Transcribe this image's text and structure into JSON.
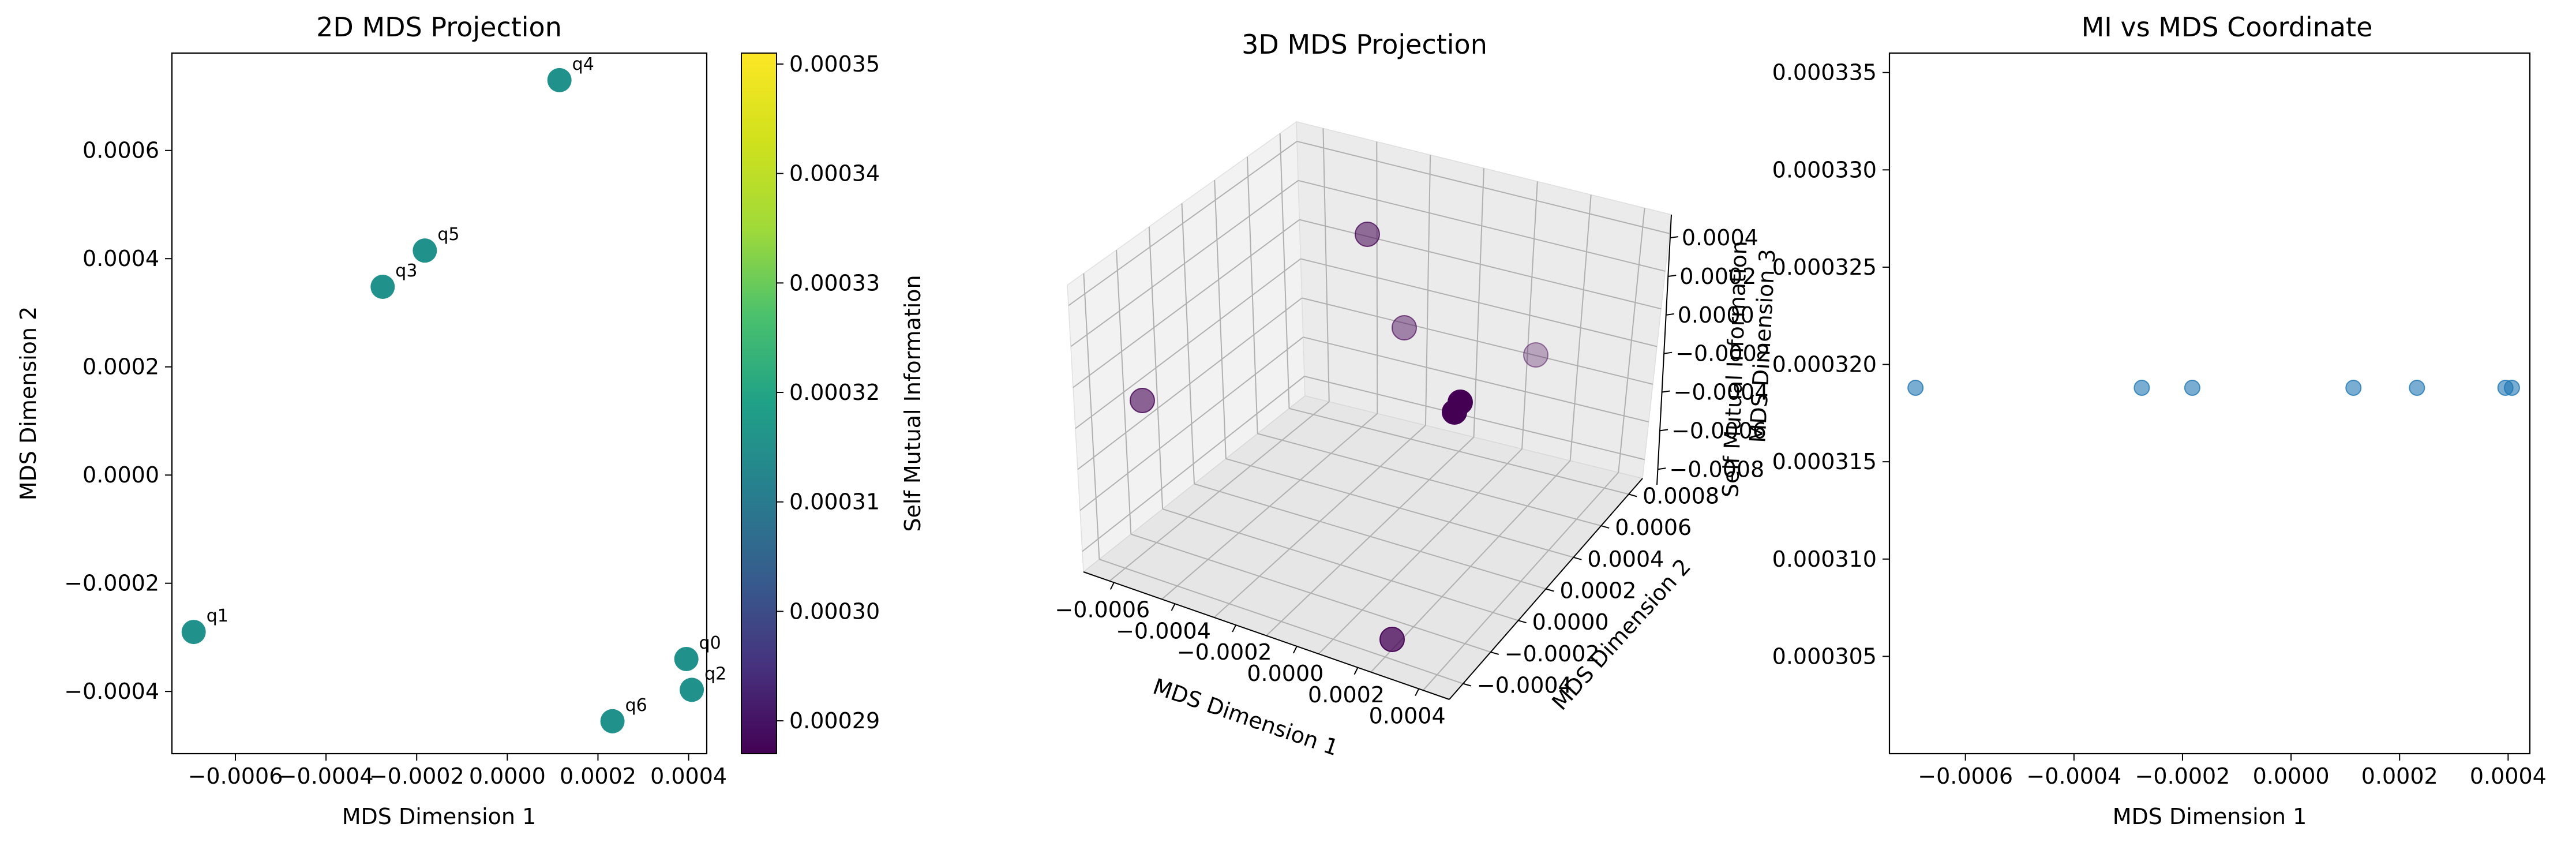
{
  "figure": {
    "background": "#ffffff",
    "axis_color": "#000000",
    "tick_label_color": "#000000"
  },
  "colorbar": {
    "label": "Self Mutual Information",
    "colormap": "viridis",
    "ticks": [
      "0.00029",
      "0.00030",
      "0.00031",
      "0.00032",
      "0.00033",
      "0.00034",
      "0.00035"
    ],
    "tick_values": [
      0.00029,
      0.0003,
      0.00031,
      0.00032,
      0.00033,
      0.00034,
      0.00035
    ],
    "range": [
      0.000287,
      0.000351
    ]
  },
  "chart_data": [
    {
      "type": "scatter",
      "title": "2D MDS Projection",
      "xlabel": "MDS Dimension 1",
      "ylabel": "MDS Dimension 2",
      "xlim": [
        -0.00074,
        0.00044
      ],
      "ylim": [
        -0.000515,
        0.00078
      ],
      "xticks": [
        -0.0006,
        -0.0004,
        -0.0002,
        0.0,
        0.0002,
        0.0004
      ],
      "xtick_labels": [
        "−0.0006",
        "−0.0004",
        "−0.0002",
        "0.0000",
        "0.0002",
        "0.0004"
      ],
      "yticks": [
        -0.0004,
        -0.0002,
        0.0,
        0.0002,
        0.0004,
        0.0006
      ],
      "ytick_labels": [
        "−0.0004",
        "−0.0002",
        "0.0000",
        "0.0002",
        "0.0004",
        "0.0006"
      ],
      "marker_color": "#21918c",
      "points": [
        {
          "label": "q0",
          "x": 0.000395,
          "y": -0.00034
        },
        {
          "label": "q1",
          "x": -0.000692,
          "y": -0.00029
        },
        {
          "label": "q2",
          "x": 0.000407,
          "y": -0.000397
        },
        {
          "label": "q3",
          "x": -0.000275,
          "y": 0.000348
        },
        {
          "label": "q4",
          "x": 0.000115,
          "y": 0.00073
        },
        {
          "label": "q5",
          "x": -0.000182,
          "y": 0.000415
        },
        {
          "label": "q6",
          "x": 0.000232,
          "y": -0.000455
        }
      ],
      "colorbar_label": "Self Mutual Information",
      "grid": false
    },
    {
      "type": "scatter3d",
      "title": "3D MDS Projection",
      "xlabel": "MDS Dimension 1",
      "ylabel": "MDS Dimension 2",
      "zlabel": "MDS Dimension 3",
      "zlabel_overlap": "Self Mutual Information",
      "xtick_labels": [
        "−0.0006",
        "−0.0004",
        "−0.0002",
        "0.0000",
        "0.0002",
        "0.0004"
      ],
      "ytick_labels": [
        "−0.0004",
        "−0.0002",
        "0.0000",
        "0.0002",
        "0.0004",
        "0.0006",
        "0.0008"
      ],
      "ztick_labels": [
        "0.0004",
        "0.0002",
        "0.0000",
        "−0.0002",
        "−0.0004",
        "−0.0006",
        "−0.0008"
      ],
      "marker_color": "#440154",
      "grid": true
    },
    {
      "type": "scatter",
      "title": "MI vs MDS Coordinate",
      "xlabel": "MDS Dimension 1",
      "ylabel": "",
      "xlim": [
        -0.00074,
        0.00044
      ],
      "ylim": [
        0.0003,
        0.000336
      ],
      "xticks": [
        -0.0006,
        -0.0004,
        -0.0002,
        0.0,
        0.0002,
        0.0004
      ],
      "xtick_labels": [
        "−0.0006",
        "−0.0004",
        "−0.0002",
        "0.0000",
        "0.0002",
        "0.0004"
      ],
      "yticks": [
        0.000305,
        0.00031,
        0.000315,
        0.00032,
        0.000325,
        0.00033,
        0.000335
      ],
      "ytick_labels": [
        "0.000305",
        "0.000310",
        "0.000315",
        "0.000320",
        "0.000325",
        "0.000330",
        "0.000335"
      ],
      "marker_color": "#1f77b4",
      "x": [
        -0.000692,
        -0.000275,
        -0.000182,
        0.000115,
        0.000232,
        0.000395,
        0.000407
      ],
      "y": [
        0.0003188,
        0.0003188,
        0.0003188,
        0.0003188,
        0.0003188,
        0.0003188,
        0.0003188
      ],
      "grid": false
    }
  ]
}
